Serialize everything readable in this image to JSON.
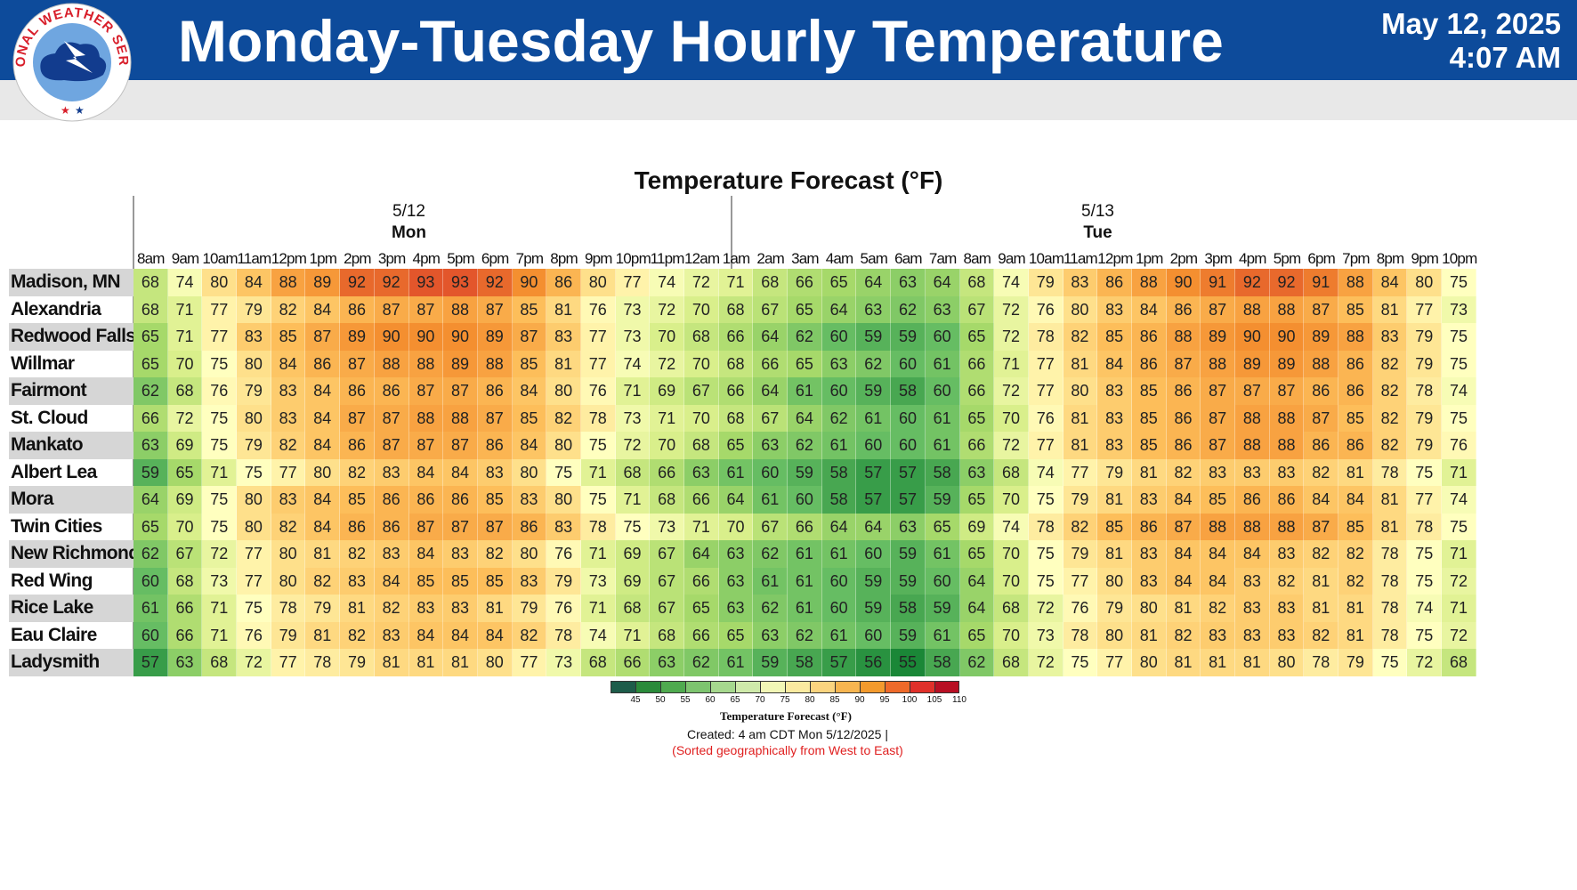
{
  "header": {
    "title": "Monday-Tuesday Hourly Temperature",
    "date": "May 12, 2025",
    "time": "4:07 AM",
    "logo_text": "NATIONAL WEATHER SERVICE",
    "background_color": "#0d4b9b"
  },
  "chart_data": {
    "type": "heatmap",
    "title": "Temperature Forecast (°F)",
    "days": [
      {
        "date": "5/12",
        "name": "Mon"
      },
      {
        "date": "5/13",
        "name": "Tue"
      }
    ],
    "hours": [
      "8am",
      "9am",
      "10am",
      "11am",
      "12pm",
      "1pm",
      "2pm",
      "3pm",
      "4pm",
      "5pm",
      "6pm",
      "7pm",
      "8pm",
      "9pm",
      "10pm",
      "11pm",
      "12am",
      "1am",
      "2am",
      "3am",
      "4am",
      "5am",
      "6am",
      "7am",
      "8am",
      "9am",
      "10am",
      "11am",
      "12pm",
      "1pm",
      "2pm",
      "3pm",
      "4pm",
      "5pm",
      "6pm",
      "7pm",
      "8pm",
      "9pm",
      "10pm"
    ],
    "rows": [
      {
        "location": "Madison, MN",
        "values": [
          68,
          74,
          80,
          84,
          88,
          89,
          92,
          92,
          93,
          93,
          92,
          90,
          86,
          80,
          77,
          74,
          72,
          71,
          68,
          66,
          65,
          64,
          63,
          64,
          68,
          74,
          79,
          83,
          86,
          88,
          90,
          91,
          92,
          92,
          91,
          88,
          84,
          80,
          75
        ]
      },
      {
        "location": "Alexandria",
        "values": [
          68,
          71,
          77,
          79,
          82,
          84,
          86,
          87,
          87,
          88,
          87,
          85,
          81,
          76,
          73,
          72,
          70,
          68,
          67,
          65,
          64,
          63,
          62,
          63,
          67,
          72,
          76,
          80,
          83,
          84,
          86,
          87,
          88,
          88,
          87,
          85,
          81,
          77,
          73
        ]
      },
      {
        "location": "Redwood Falls",
        "values": [
          65,
          71,
          77,
          83,
          85,
          87,
          89,
          90,
          90,
          90,
          89,
          87,
          83,
          77,
          73,
          70,
          68,
          66,
          64,
          62,
          60,
          59,
          59,
          60,
          65,
          72,
          78,
          82,
          85,
          86,
          88,
          89,
          90,
          90,
          89,
          88,
          83,
          79,
          75
        ]
      },
      {
        "location": "Willmar",
        "values": [
          65,
          70,
          75,
          80,
          84,
          86,
          87,
          88,
          88,
          89,
          88,
          85,
          81,
          77,
          74,
          72,
          70,
          68,
          66,
          65,
          63,
          62,
          60,
          61,
          66,
          71,
          77,
          81,
          84,
          86,
          87,
          88,
          89,
          89,
          88,
          86,
          82,
          79,
          75
        ]
      },
      {
        "location": "Fairmont",
        "values": [
          62,
          68,
          76,
          79,
          83,
          84,
          86,
          86,
          87,
          87,
          86,
          84,
          80,
          76,
          71,
          69,
          67,
          66,
          64,
          61,
          60,
          59,
          58,
          60,
          66,
          72,
          77,
          80,
          83,
          85,
          86,
          87,
          87,
          87,
          86,
          86,
          82,
          78,
          74
        ]
      },
      {
        "location": "St. Cloud",
        "values": [
          66,
          72,
          75,
          80,
          83,
          84,
          87,
          87,
          88,
          88,
          87,
          85,
          82,
          78,
          73,
          71,
          70,
          68,
          67,
          64,
          62,
          61,
          60,
          61,
          65,
          70,
          76,
          81,
          83,
          85,
          86,
          87,
          88,
          88,
          87,
          85,
          82,
          79,
          75
        ]
      },
      {
        "location": "Mankato",
        "values": [
          63,
          69,
          75,
          79,
          82,
          84,
          86,
          87,
          87,
          87,
          86,
          84,
          80,
          75,
          72,
          70,
          68,
          65,
          63,
          62,
          61,
          60,
          60,
          61,
          66,
          72,
          77,
          81,
          83,
          85,
          86,
          87,
          88,
          88,
          86,
          86,
          82,
          79,
          76
        ]
      },
      {
        "location": "Albert Lea",
        "values": [
          59,
          65,
          71,
          75,
          77,
          80,
          82,
          83,
          84,
          84,
          83,
          80,
          75,
          71,
          68,
          66,
          63,
          61,
          60,
          59,
          58,
          57,
          57,
          58,
          63,
          68,
          74,
          77,
          79,
          81,
          82,
          83,
          83,
          83,
          82,
          81,
          78,
          75,
          71
        ]
      },
      {
        "location": "Mora",
        "values": [
          64,
          69,
          75,
          80,
          83,
          84,
          85,
          86,
          86,
          86,
          85,
          83,
          80,
          75,
          71,
          68,
          66,
          64,
          61,
          60,
          58,
          57,
          57,
          59,
          65,
          70,
          75,
          79,
          81,
          83,
          84,
          85,
          86,
          86,
          84,
          84,
          81,
          77,
          74
        ]
      },
      {
        "location": "Twin Cities",
        "values": [
          65,
          70,
          75,
          80,
          82,
          84,
          86,
          86,
          87,
          87,
          87,
          86,
          83,
          78,
          75,
          73,
          71,
          70,
          67,
          66,
          64,
          64,
          63,
          65,
          69,
          74,
          78,
          82,
          85,
          86,
          87,
          88,
          88,
          88,
          87,
          85,
          81,
          78,
          75
        ]
      },
      {
        "location": "New Richmond",
        "values": [
          62,
          67,
          72,
          77,
          80,
          81,
          82,
          83,
          84,
          83,
          82,
          80,
          76,
          71,
          69,
          67,
          64,
          63,
          62,
          61,
          61,
          60,
          59,
          61,
          65,
          70,
          75,
          79,
          81,
          83,
          84,
          84,
          84,
          83,
          82,
          82,
          78,
          75,
          71
        ]
      },
      {
        "location": "Red Wing",
        "values": [
          60,
          68,
          73,
          77,
          80,
          82,
          83,
          84,
          85,
          85,
          85,
          83,
          79,
          73,
          69,
          67,
          66,
          63,
          61,
          61,
          60,
          59,
          59,
          60,
          64,
          70,
          75,
          77,
          80,
          83,
          84,
          84,
          83,
          82,
          81,
          82,
          78,
          75,
          72
        ]
      },
      {
        "location": "Rice Lake",
        "values": [
          61,
          66,
          71,
          75,
          78,
          79,
          81,
          82,
          83,
          83,
          81,
          79,
          76,
          71,
          68,
          67,
          65,
          63,
          62,
          61,
          60,
          59,
          58,
          59,
          64,
          68,
          72,
          76,
          79,
          80,
          81,
          82,
          83,
          83,
          81,
          81,
          78,
          74,
          71
        ]
      },
      {
        "location": "Eau Claire",
        "values": [
          60,
          66,
          71,
          76,
          79,
          81,
          82,
          83,
          84,
          84,
          84,
          82,
          78,
          74,
          71,
          68,
          66,
          65,
          63,
          62,
          61,
          60,
          59,
          61,
          65,
          70,
          73,
          78,
          80,
          81,
          82,
          83,
          83,
          83,
          82,
          81,
          78,
          75,
          72
        ]
      },
      {
        "location": "Ladysmith",
        "values": [
          57,
          63,
          68,
          72,
          77,
          78,
          79,
          81,
          81,
          81,
          80,
          77,
          73,
          68,
          66,
          63,
          62,
          61,
          59,
          58,
          57,
          56,
          55,
          58,
          62,
          68,
          72,
          75,
          77,
          80,
          81,
          81,
          81,
          80,
          78,
          79,
          75,
          72,
          68
        ]
      }
    ],
    "legend": {
      "title": "Temperature Forecast (°F)",
      "ticks": [
        45,
        50,
        55,
        60,
        65,
        70,
        75,
        80,
        85,
        90,
        95,
        100,
        105,
        110
      ],
      "colors": [
        "#1d5c4a",
        "#2a8a3a",
        "#4faa4f",
        "#7dc46f",
        "#a6d88e",
        "#cfeaaa",
        "#f2f7b6",
        "#fbeaa0",
        "#fbd47f",
        "#f7b550",
        "#f39a2d",
        "#ee6a2a",
        "#e0302a",
        "#b80f23"
      ]
    },
    "footnote_created": "Created: 4 am CDT Mon 5/12/2025  |",
    "footnote_sorted": "(Sorted geographically from West to East)"
  }
}
